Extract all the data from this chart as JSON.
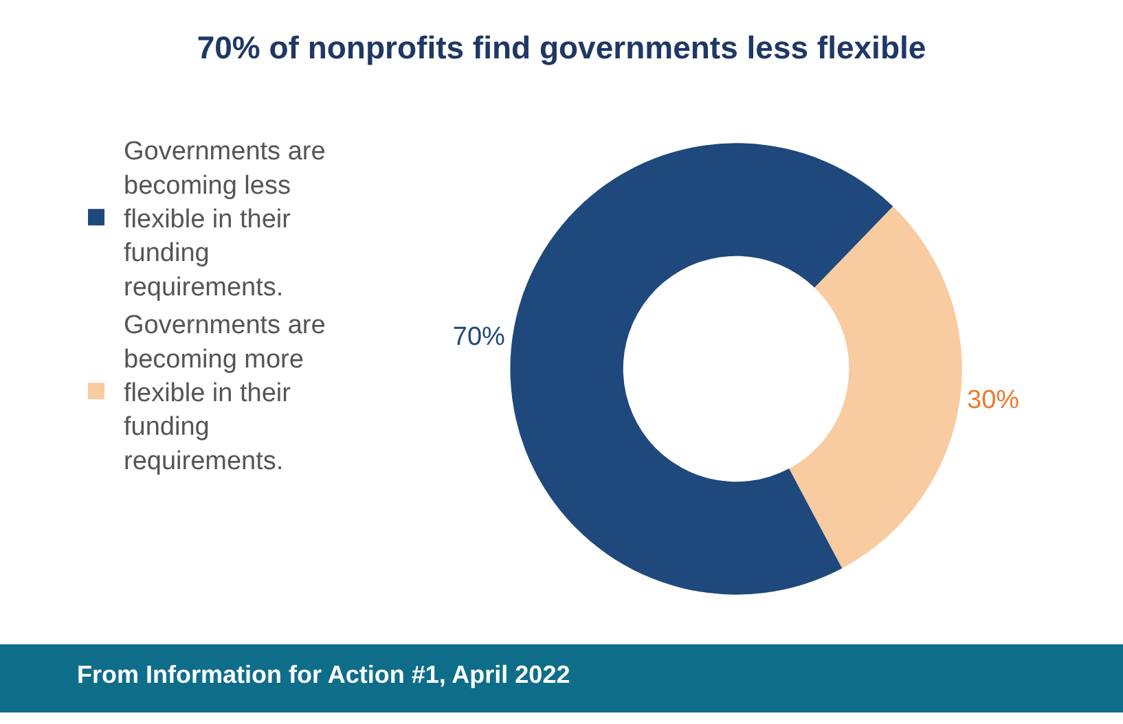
{
  "chart_data": {
    "type": "donut",
    "title": "70% of nonprofits find governments less flexible",
    "categories": [
      "Governments are becoming less flexible in their funding requirements.",
      "Governments are becoming more flexible in their funding requirements."
    ],
    "values": [
      70,
      30
    ],
    "colors": [
      "#1f497d",
      "#f9cba0"
    ],
    "value_labels": [
      "70%",
      "30%"
    ],
    "legend": "left",
    "annotations": [
      "From Information for Action #1, April 2022"
    ]
  }
}
